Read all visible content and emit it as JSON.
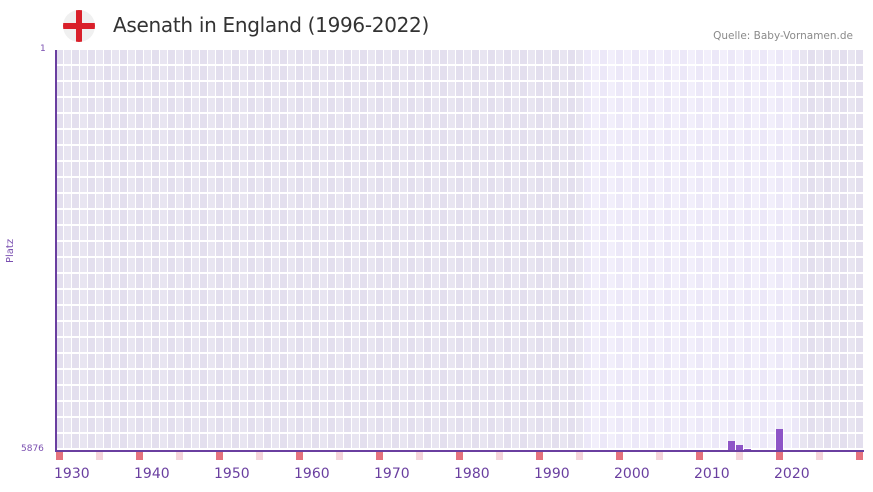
{
  "header": {
    "title": "Asenath in England (1996-2022)",
    "source": "Quelle: Baby-Vornamen.de",
    "flag_icon": "england-flag-icon"
  },
  "colors": {
    "axis": "#6a3fa0",
    "bar": "#8e55c7",
    "decade_marker": "#e5737e",
    "half_decade_marker": "#f5d5dc",
    "bg_dark_a": "#e3dfee",
    "bg_dark_b": "#e8e5f1",
    "bg_light_a": "#ece8f8",
    "bg_light_b": "#f2effb",
    "grid": "#ffffff"
  },
  "chart_data": {
    "type": "bar",
    "title": "Asenath in England (1996-2022)",
    "xlabel": "",
    "ylabel": "Platz",
    "y_inverted": true,
    "ylim": [
      5876,
      1
    ],
    "y_ticks": [
      "1",
      "5876"
    ],
    "x_range": [
      1930,
      2030
    ],
    "x_ticks": [
      "1930",
      "1940",
      "1950",
      "1960",
      "1970",
      "1980",
      "1990",
      "2000",
      "2010",
      "2020"
    ],
    "highlight_range": [
      1996,
      2022
    ],
    "categories": [
      "2014",
      "2015",
      "2016",
      "2020"
    ],
    "values": [
      5744,
      5803,
      5854,
      5568
    ],
    "grid": true,
    "legend": null
  },
  "axis": {
    "y_label": "Platz",
    "y_top": "1",
    "y_bottom": "5876",
    "x_ticks": [
      {
        "label": "1930",
        "year": 1930
      },
      {
        "label": "1940",
        "year": 1940
      },
      {
        "label": "1950",
        "year": 1950
      },
      {
        "label": "1960",
        "year": 1960
      },
      {
        "label": "1970",
        "year": 1970
      },
      {
        "label": "1980",
        "year": 1980
      },
      {
        "label": "1990",
        "year": 1990
      },
      {
        "label": "2000",
        "year": 2000
      },
      {
        "label": "2010",
        "year": 2010
      },
      {
        "label": "2020",
        "year": 2020
      }
    ]
  }
}
